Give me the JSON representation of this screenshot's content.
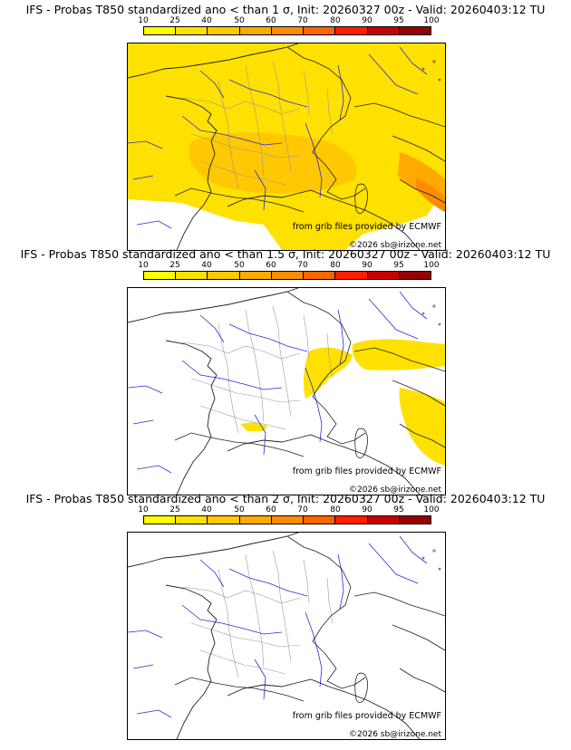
{
  "colorbar": {
    "ticks": [
      "10",
      "25",
      "40",
      "50",
      "60",
      "70",
      "80",
      "90",
      "95",
      "100"
    ],
    "colors": [
      "#ffff00",
      "#ffe100",
      "#ffc800",
      "#ffaa00",
      "#ff8c00",
      "#ff6400",
      "#ff1e00",
      "#c80000",
      "#960000"
    ]
  },
  "panels": [
    {
      "title": "IFS - Probas T850  standardized ano < than 1 σ, Init: 20260327 00z - Valid: 20260403:12 TU",
      "source": "from grib files provided by ECMWF",
      "copyright": "©2026 sb@irizone.net",
      "coverage": "high"
    },
    {
      "title": "IFS - Probas T850  standardized ano < than 1.5 σ, Init: 20260327 00z - Valid: 20260403:12 TU",
      "source": "from grib files provided by ECMWF",
      "copyright": "©2026 sb@irizone.net",
      "coverage": "medium"
    },
    {
      "title": "IFS - Probas T850  standardized ano < than 2 σ, Init: 20260327 00z - Valid: 20260403:12 TU",
      "source": "from grib files provided by ECMWF",
      "copyright": "©2026 sb@irizone.net",
      "coverage": "none"
    }
  ]
}
